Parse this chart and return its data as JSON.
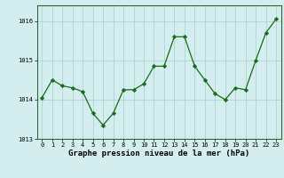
{
  "x": [
    0,
    1,
    2,
    3,
    4,
    5,
    6,
    7,
    8,
    9,
    10,
    11,
    12,
    13,
    14,
    15,
    16,
    17,
    18,
    19,
    20,
    21,
    22,
    23
  ],
  "y": [
    1014.05,
    1014.5,
    1014.35,
    1014.3,
    1014.2,
    1013.65,
    1013.35,
    1013.65,
    1014.25,
    1014.25,
    1014.4,
    1014.85,
    1014.85,
    1015.6,
    1015.6,
    1014.85,
    1014.5,
    1014.15,
    1014.0,
    1014.3,
    1014.25,
    1015.0,
    1015.7,
    1016.05
  ],
  "line_color": "#1a6b1a",
  "marker": "D",
  "marker_size": 2.2,
  "bg_color": "#d4eef0",
  "grid_color": "#a8cdd0",
  "xlabel": "Graphe pression niveau de la mer (hPa)",
  "ylim": [
    1013.0,
    1016.4
  ],
  "yticks": [
    1013,
    1014,
    1015,
    1016
  ],
  "xlim": [
    -0.5,
    23.5
  ],
  "xticks": [
    0,
    1,
    2,
    3,
    4,
    5,
    6,
    7,
    8,
    9,
    10,
    11,
    12,
    13,
    14,
    15,
    16,
    17,
    18,
    19,
    20,
    21,
    22,
    23
  ],
  "tick_fontsize": 5.0,
  "xlabel_fontsize": 6.5,
  "xlabel_fontweight": "bold",
  "spine_color": "#336633",
  "bottom_bar_color": "#336633"
}
